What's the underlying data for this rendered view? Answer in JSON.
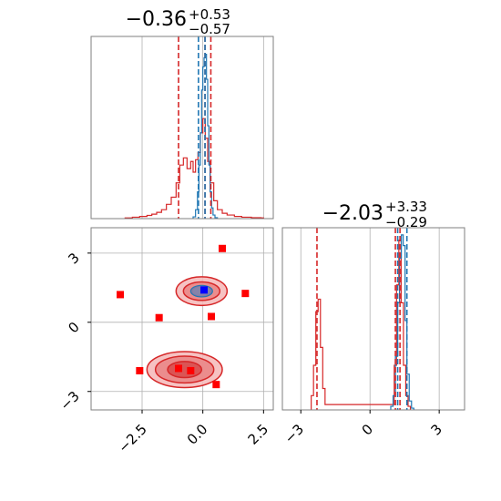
{
  "colors": {
    "red": "#d62728",
    "blue": "#1f77b4",
    "marker_red": "#ff0000",
    "marker_blue": "#0000ff",
    "grid": "#b0b0b0",
    "axis": "#7f7f7f"
  },
  "chart_data": [
    {
      "panel": "top-left",
      "type": "histogram",
      "title": {
        "center": "−0.36",
        "plus": "+0.53",
        "minus": "−0.57"
      },
      "xlim": [
        -4.6,
        2.9
      ],
      "grid": true,
      "red_lines": [
        -1.0,
        0.09,
        0.33
      ],
      "blue_lines": [
        -0.18,
        0.09
      ],
      "red_steps": [
        [
          -3.2,
          0.004
        ],
        [
          -2.9,
          0.008
        ],
        [
          -2.6,
          0.012
        ],
        [
          -2.3,
          0.018
        ],
        [
          -2.1,
          0.025
        ],
        [
          -1.9,
          0.035
        ],
        [
          -1.7,
          0.05
        ],
        [
          -1.5,
          0.08
        ],
        [
          -1.3,
          0.12
        ],
        [
          -1.1,
          0.2
        ],
        [
          -0.95,
          0.3
        ],
        [
          -0.8,
          0.34
        ],
        [
          -0.65,
          0.28
        ],
        [
          -0.5,
          0.32
        ],
        [
          -0.4,
          0.26
        ],
        [
          -0.3,
          0.33
        ],
        [
          -0.2,
          0.37
        ],
        [
          -0.1,
          0.48
        ],
        [
          0.0,
          0.56
        ],
        [
          0.1,
          0.45
        ],
        [
          0.2,
          0.32
        ],
        [
          0.3,
          0.2
        ],
        [
          0.45,
          0.1
        ],
        [
          0.6,
          0.05
        ],
        [
          0.8,
          0.03
        ],
        [
          1.0,
          0.02
        ],
        [
          1.3,
          0.012
        ],
        [
          1.6,
          0.008
        ],
        [
          2.0,
          0.005
        ],
        [
          2.4,
          0.004
        ]
      ],
      "blue_steps": [
        [
          -0.4,
          0.01
        ],
        [
          -0.3,
          0.05
        ],
        [
          -0.22,
          0.15
        ],
        [
          -0.16,
          0.3
        ],
        [
          -0.1,
          0.48
        ],
        [
          -0.05,
          0.72
        ],
        [
          0.0,
          0.85
        ],
        [
          0.05,
          0.9
        ],
        [
          0.1,
          0.92
        ],
        [
          0.15,
          0.78
        ],
        [
          0.2,
          0.52
        ],
        [
          0.25,
          0.3
        ],
        [
          0.3,
          0.15
        ],
        [
          0.36,
          0.06
        ],
        [
          0.42,
          0.02
        ],
        [
          0.5,
          0.005
        ]
      ],
      "y_max": 0.98
    },
    {
      "panel": "bottom-left",
      "type": "scatter",
      "xlim": [
        -4.6,
        2.9
      ],
      "ylim": [
        -3.8,
        4.1
      ],
      "xticks": [
        -2.5,
        0.0,
        2.5
      ],
      "xtick_labels": [
        "−2.5",
        "0.0",
        "2.5"
      ],
      "yticks": [
        -3,
        0,
        3
      ],
      "ytick_labels": [
        "−3",
        "0",
        "3"
      ],
      "grid": true,
      "red_points": [
        {
          "x": 0.8,
          "y": 3.2
        },
        {
          "x": -3.4,
          "y": 1.2
        },
        {
          "x": 1.75,
          "y": 1.25
        },
        {
          "x": -1.8,
          "y": 0.2
        },
        {
          "x": 0.35,
          "y": 0.25
        },
        {
          "x": -2.6,
          "y": -2.1
        },
        {
          "x": -1.0,
          "y": -2.0
        },
        {
          "x": -0.5,
          "y": -2.1
        },
        {
          "x": 0.55,
          "y": -2.7
        }
      ],
      "blue_points": [
        {
          "x": 0.05,
          "y": 1.4
        }
      ],
      "contours": [
        {
          "cx": -0.75,
          "cy": -2.05,
          "levels": [
            [
              1.55,
              0.78
            ],
            [
              1.2,
              0.58
            ],
            [
              0.7,
              0.35
            ]
          ]
        },
        {
          "cx": -0.05,
          "cy": 1.35,
          "levels": [
            [
              1.05,
              0.62
            ],
            [
              0.75,
              0.4
            ],
            [
              0.4,
              0.22
            ]
          ]
        }
      ]
    },
    {
      "panel": "bottom-right",
      "type": "histogram",
      "title": {
        "center": "−2.03",
        "plus": "+3.33",
        "minus": "−0.29"
      },
      "xlim": [
        -3.8,
        4.1
      ],
      "xticks": [
        -3,
        0,
        3
      ],
      "xtick_labels": [
        "−3",
        "0",
        "3"
      ],
      "grid": true,
      "red_lines": [
        -2.3,
        1.1,
        1.3
      ],
      "blue_lines": [
        1.2,
        1.6
      ],
      "red_steps": [
        [
          -2.55,
          0.08
        ],
        [
          -2.45,
          0.25
        ],
        [
          -2.35,
          0.55
        ],
        [
          -2.25,
          0.62
        ],
        [
          -2.15,
          0.35
        ],
        [
          -2.05,
          0.12
        ],
        [
          -1.95,
          0.03
        ],
        [
          0.95,
          0.03
        ],
        [
          1.05,
          0.25
        ],
        [
          1.15,
          0.7
        ],
        [
          1.25,
          0.95
        ],
        [
          1.35,
          0.6
        ],
        [
          1.45,
          0.25
        ],
        [
          1.55,
          0.08
        ],
        [
          1.65,
          0.02
        ]
      ],
      "blue_steps": [
        [
          0.9,
          0.02
        ],
        [
          1.0,
          0.08
        ],
        [
          1.1,
          0.3
        ],
        [
          1.2,
          0.6
        ],
        [
          1.28,
          0.85
        ],
        [
          1.36,
          0.98
        ],
        [
          1.44,
          0.92
        ],
        [
          1.52,
          0.5
        ],
        [
          1.6,
          0.2
        ],
        [
          1.7,
          0.05
        ],
        [
          1.8,
          0.01
        ]
      ],
      "y_max": 1.0
    }
  ]
}
